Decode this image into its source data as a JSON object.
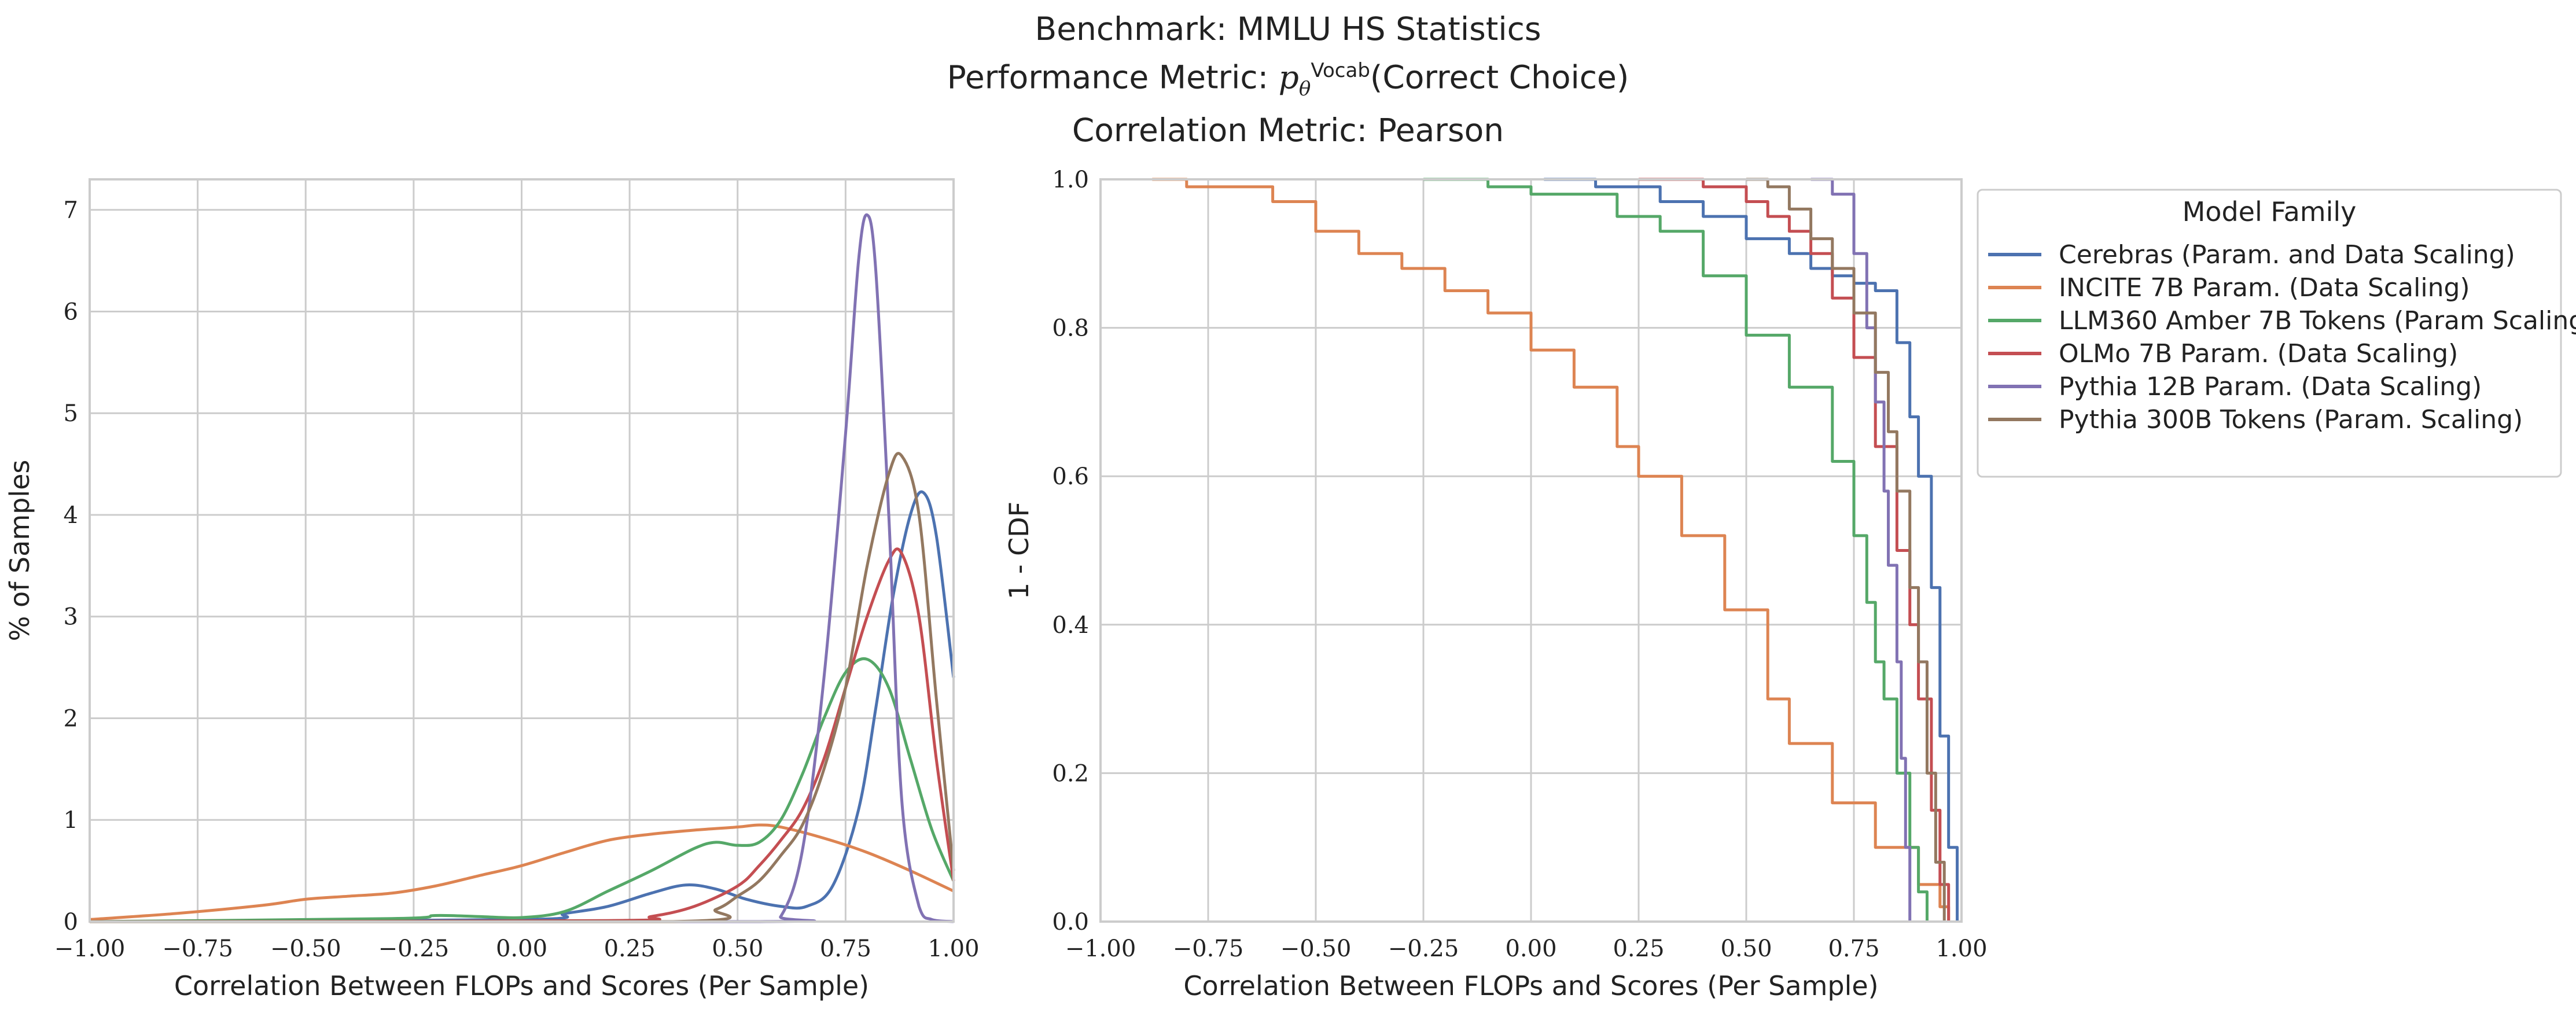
{
  "figure": {
    "title_line1": "Benchmark: MMLU HS Statistics",
    "title_line2_prefix": "Performance Metric: ",
    "title_line2_p": "p",
    "title_line2_sub": "θ",
    "title_line2_sup": "Vocab",
    "title_line2_suffix": "(Correct Choice)",
    "title_line3": "Correlation Metric: Pearson"
  },
  "colors": {
    "Cerebras": "#4c72b0",
    "INCITE": "#dd8452",
    "LLM360": "#55a868",
    "OLMo": "#c44e52",
    "Pythia12B": "#8172b3",
    "Pythia300B": "#937860",
    "grid": "#cccccc",
    "frame": "#cccccc"
  },
  "chart_data": [
    {
      "type": "line",
      "subtype": "kde",
      "xlabel": "Correlation Between FLOPs and Scores (Per Sample)",
      "ylabel": "% of Samples",
      "xlim": [
        -1.0,
        1.0
      ],
      "ylim": [
        0,
        7.3
      ],
      "xticks": [
        "−1.00",
        "−0.75",
        "−0.50",
        "−0.25",
        "0.00",
        "0.25",
        "0.50",
        "0.75",
        "1.00"
      ],
      "xtick_values": [
        -1.0,
        -0.75,
        -0.5,
        -0.25,
        0.0,
        0.25,
        0.5,
        0.75,
        1.0
      ],
      "yticks": [
        "0",
        "1",
        "2",
        "3",
        "4",
        "5",
        "6",
        "7"
      ],
      "ytick_values": [
        0,
        1,
        2,
        3,
        4,
        5,
        6,
        7
      ],
      "grid": true,
      "series": [
        {
          "key": "Cerebras",
          "x": [
            -1.0,
            0.0,
            0.1,
            0.2,
            0.3,
            0.38,
            0.45,
            0.52,
            0.6,
            0.66,
            0.72,
            0.78,
            0.82,
            0.86,
            0.9,
            0.93,
            0.96,
            1.0
          ],
          "y": [
            0,
            0.02,
            0.08,
            0.15,
            0.28,
            0.36,
            0.32,
            0.22,
            0.15,
            0.15,
            0.35,
            1.1,
            2.1,
            3.2,
            4.0,
            4.22,
            3.8,
            2.4
          ]
        },
        {
          "key": "INCITE",
          "x": [
            -1.0,
            -0.8,
            -0.6,
            -0.5,
            -0.4,
            -0.3,
            -0.2,
            -0.1,
            0.0,
            0.1,
            0.2,
            0.3,
            0.4,
            0.5,
            0.55,
            0.6,
            0.7,
            0.8,
            0.9,
            1.0
          ],
          "y": [
            0.02,
            0.08,
            0.16,
            0.22,
            0.25,
            0.28,
            0.35,
            0.45,
            0.55,
            0.68,
            0.8,
            0.86,
            0.9,
            0.93,
            0.95,
            0.93,
            0.82,
            0.68,
            0.5,
            0.3
          ]
        },
        {
          "key": "LLM360",
          "x": [
            -1.0,
            -0.3,
            -0.2,
            -0.1,
            0.0,
            0.1,
            0.2,
            0.3,
            0.4,
            0.45,
            0.5,
            0.55,
            0.6,
            0.65,
            0.7,
            0.75,
            0.8,
            0.85,
            0.9,
            0.95,
            1.0
          ],
          "y": [
            0,
            0.03,
            0.06,
            0.05,
            0.04,
            0.1,
            0.3,
            0.5,
            0.72,
            0.78,
            0.75,
            0.78,
            1.0,
            1.45,
            2.0,
            2.45,
            2.58,
            2.3,
            1.6,
            0.9,
            0.4
          ]
        },
        {
          "key": "OLMo",
          "x": [
            -1.0,
            0.2,
            0.3,
            0.4,
            0.5,
            0.55,
            0.6,
            0.65,
            0.7,
            0.75,
            0.8,
            0.85,
            0.88,
            0.92,
            0.96,
            1.0
          ],
          "y": [
            0,
            0.01,
            0.05,
            0.15,
            0.35,
            0.55,
            0.8,
            1.1,
            1.6,
            2.3,
            3.0,
            3.55,
            3.62,
            3.0,
            1.6,
            0.4
          ]
        },
        {
          "key": "Pythia12B",
          "x": [
            -1.0,
            0.55,
            0.6,
            0.65,
            0.7,
            0.75,
            0.78,
            0.8,
            0.82,
            0.85,
            0.88,
            0.92,
            0.95,
            1.0
          ],
          "y": [
            0,
            0,
            0.05,
            0.7,
            2.4,
            4.8,
            6.5,
            6.95,
            6.4,
            4.0,
            1.2,
            0.15,
            0.02,
            0
          ]
        },
        {
          "key": "Pythia300B",
          "x": [
            -1.0,
            0.35,
            0.45,
            0.5,
            0.55,
            0.6,
            0.65,
            0.7,
            0.75,
            0.8,
            0.85,
            0.88,
            0.92,
            0.96,
            1.0
          ],
          "y": [
            0,
            0,
            0.12,
            0.25,
            0.4,
            0.65,
            0.95,
            1.5,
            2.3,
            3.5,
            4.4,
            4.58,
            4.0,
            2.2,
            0.5
          ]
        }
      ]
    },
    {
      "type": "line",
      "subtype": "step (1 - CDF)",
      "xlabel": "Correlation Between FLOPs and Scores (Per Sample)",
      "ylabel": "1 - CDF",
      "xlim": [
        -1.0,
        1.0
      ],
      "ylim": [
        0.0,
        1.0
      ],
      "xticks": [
        "−1.00",
        "−0.75",
        "−0.50",
        "−0.25",
        "0.00",
        "0.25",
        "0.50",
        "0.75",
        "1.00"
      ],
      "xtick_values": [
        -1.0,
        -0.75,
        -0.5,
        -0.25,
        0.0,
        0.25,
        0.5,
        0.75,
        1.0
      ],
      "yticks": [
        "0.0",
        "0.2",
        "0.4",
        "0.6",
        "0.8",
        "1.0"
      ],
      "ytick_values": [
        0.0,
        0.2,
        0.4,
        0.6,
        0.8,
        1.0
      ],
      "grid": true,
      "legend_title": "Model Family",
      "legend_position": "outside right, top",
      "series": [
        {
          "key": "Cerebras",
          "name": "Cerebras (Param. and Data Scaling)",
          "x": [
            0.03,
            0.15,
            0.3,
            0.4,
            0.5,
            0.6,
            0.65,
            0.7,
            0.75,
            0.8,
            0.85,
            0.88,
            0.9,
            0.93,
            0.95,
            0.97,
            0.99
          ],
          "y": [
            1.0,
            0.99,
            0.97,
            0.95,
            0.92,
            0.9,
            0.88,
            0.87,
            0.86,
            0.85,
            0.78,
            0.68,
            0.6,
            0.45,
            0.25,
            0.1,
            0.0
          ]
        },
        {
          "key": "INCITE",
          "name": "INCITE 7B Param. (Data Scaling)",
          "x": [
            -0.88,
            -0.8,
            -0.6,
            -0.5,
            -0.4,
            -0.3,
            -0.2,
            -0.1,
            0.0,
            0.1,
            0.2,
            0.25,
            0.35,
            0.45,
            0.55,
            0.6,
            0.7,
            0.8,
            0.9,
            0.95,
            0.97
          ],
          "y": [
            1.0,
            0.99,
            0.97,
            0.93,
            0.9,
            0.88,
            0.85,
            0.82,
            0.77,
            0.72,
            0.64,
            0.6,
            0.52,
            0.42,
            0.3,
            0.24,
            0.16,
            0.1,
            0.05,
            0.02,
            0.0
          ]
        },
        {
          "key": "LLM360",
          "name": "LLM360 Amber 7B Tokens (Param Scaling)",
          "x": [
            -0.25,
            -0.1,
            0.0,
            0.12,
            0.2,
            0.3,
            0.4,
            0.5,
            0.6,
            0.7,
            0.75,
            0.78,
            0.8,
            0.82,
            0.85,
            0.88,
            0.9,
            0.92
          ],
          "y": [
            1.0,
            0.99,
            0.98,
            0.98,
            0.95,
            0.93,
            0.87,
            0.79,
            0.72,
            0.62,
            0.52,
            0.43,
            0.35,
            0.3,
            0.2,
            0.1,
            0.04,
            0.0
          ]
        },
        {
          "key": "OLMo",
          "name": "OLMo 7B Param. (Data Scaling)",
          "x": [
            0.25,
            0.35,
            0.4,
            0.5,
            0.55,
            0.6,
            0.65,
            0.7,
            0.75,
            0.8,
            0.85,
            0.88,
            0.9,
            0.93,
            0.95,
            0.97
          ],
          "y": [
            1.0,
            1.0,
            0.99,
            0.97,
            0.95,
            0.93,
            0.9,
            0.84,
            0.76,
            0.64,
            0.5,
            0.4,
            0.3,
            0.15,
            0.05,
            0.0
          ]
        },
        {
          "key": "Pythia12B",
          "name": "Pythia 12B Param. (Data Scaling)",
          "x": [
            0.65,
            0.7,
            0.75,
            0.78,
            0.8,
            0.82,
            0.83,
            0.85,
            0.86,
            0.87,
            0.88
          ],
          "y": [
            1.0,
            0.98,
            0.9,
            0.8,
            0.7,
            0.58,
            0.48,
            0.35,
            0.22,
            0.1,
            0.0
          ]
        },
        {
          "key": "Pythia300B",
          "name": "Pythia 300B Tokens (Param. Scaling)",
          "x": [
            0.5,
            0.55,
            0.6,
            0.65,
            0.7,
            0.75,
            0.8,
            0.83,
            0.85,
            0.88,
            0.9,
            0.92,
            0.94,
            0.96
          ],
          "y": [
            1.0,
            0.99,
            0.96,
            0.92,
            0.88,
            0.82,
            0.74,
            0.66,
            0.58,
            0.45,
            0.35,
            0.2,
            0.08,
            0.0
          ]
        }
      ]
    }
  ]
}
